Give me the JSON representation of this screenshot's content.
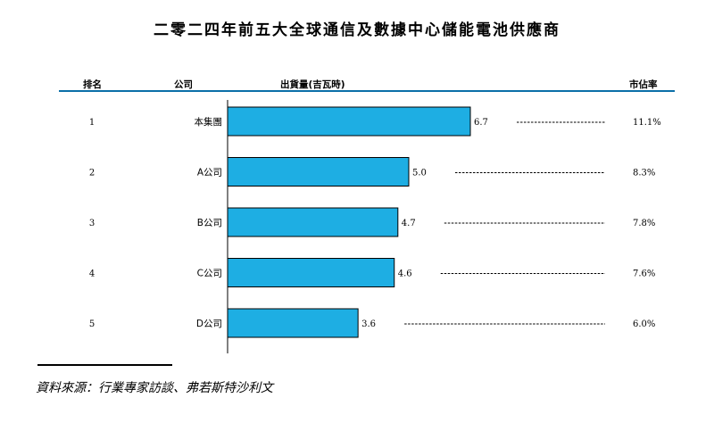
{
  "title": "二零二四年前五大全球通信及數據中心儲能電池供應商",
  "headers": {
    "rank": "排名",
    "company": "公司",
    "shipments": "出貨量(吉瓦時)",
    "market_share": "市佔率"
  },
  "colors": {
    "bar_fill": "#1eaee3",
    "bar_stroke": "#000000",
    "header_rule": "#0b6fa8",
    "dashed_line": "#000000"
  },
  "chart_data": {
    "type": "bar",
    "orientation": "horizontal",
    "title": "二零二四年前五大全球通信及數據中心儲能電池供應商",
    "xlabel": "出貨量(吉瓦時)",
    "ylabel": "公司",
    "xlim": [
      0,
      6.7
    ],
    "categories": [
      "本集團",
      "A公司",
      "B公司",
      "C公司",
      "D公司"
    ],
    "ranks": [
      "1",
      "2",
      "3",
      "4",
      "5"
    ],
    "values": [
      6.7,
      5.0,
      4.7,
      4.6,
      3.6
    ],
    "value_labels": [
      "6.7",
      "5.0",
      "4.7",
      "4.6",
      "3.6"
    ],
    "market_share": [
      "11.1%",
      "8.3%",
      "7.8%",
      "7.6%",
      "6.0%"
    ]
  },
  "source": "資料來源：行業專家訪談、弗若斯特沙利文"
}
